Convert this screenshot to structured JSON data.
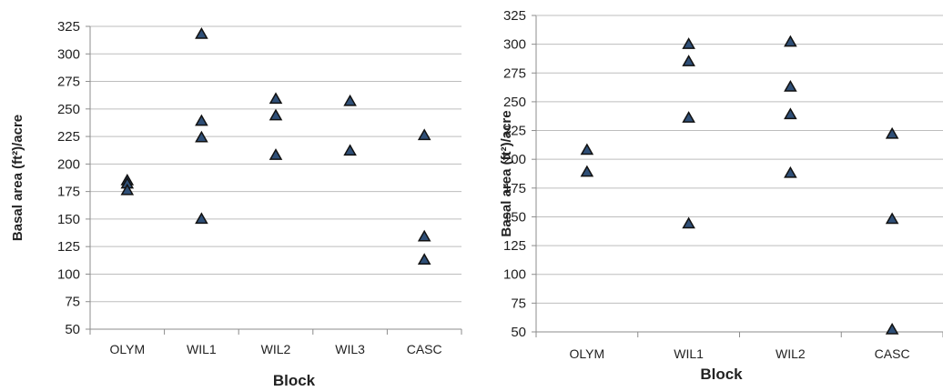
{
  "chart_data": [
    {
      "type": "scatter",
      "title": "",
      "xlabel": "Block",
      "ylabel": "Basal area (ft²)/acre",
      "categories": [
        "OLYM",
        "WIL1",
        "WIL2",
        "WIL3",
        "CASC"
      ],
      "ylim": [
        50,
        325
      ],
      "yticks": [
        "50",
        "75",
        "100",
        "125",
        "150",
        "175",
        "200",
        "225",
        "250",
        "275",
        "300",
        "325"
      ],
      "grid": true,
      "legend": "none",
      "marker": "triangle",
      "marker_color": "#2f4f77",
      "points": [
        {
          "x": "OLYM",
          "y": 185
        },
        {
          "x": "OLYM",
          "y": 182
        },
        {
          "x": "OLYM",
          "y": 176
        },
        {
          "x": "WIL1",
          "y": 318
        },
        {
          "x": "WIL1",
          "y": 239
        },
        {
          "x": "WIL1",
          "y": 224
        },
        {
          "x": "WIL1",
          "y": 150
        },
        {
          "x": "WIL2",
          "y": 259
        },
        {
          "x": "WIL2",
          "y": 244
        },
        {
          "x": "WIL2",
          "y": 208
        },
        {
          "x": "WIL3",
          "y": 257
        },
        {
          "x": "WIL3",
          "y": 212
        },
        {
          "x": "CASC",
          "y": 226
        },
        {
          "x": "CASC",
          "y": 134
        },
        {
          "x": "CASC",
          "y": 113
        }
      ]
    },
    {
      "type": "scatter",
      "title": "",
      "xlabel": "Block",
      "ylabel": "Basal area (ft²)/acre",
      "categories": [
        "OLYM",
        "WIL1",
        "WIL2",
        "CASC"
      ],
      "ylim": [
        50,
        325
      ],
      "yticks": [
        "50",
        "75",
        "100",
        "125",
        "150",
        "175",
        "200",
        "225",
        "250",
        "275",
        "300",
        "325"
      ],
      "grid": true,
      "legend": "none",
      "marker": "triangle",
      "marker_color": "#2f4f77",
      "points": [
        {
          "x": "OLYM",
          "y": 208
        },
        {
          "x": "OLYM",
          "y": 189
        },
        {
          "x": "WIL1",
          "y": 300
        },
        {
          "x": "WIL1",
          "y": 285
        },
        {
          "x": "WIL1",
          "y": 236
        },
        {
          "x": "WIL1",
          "y": 144
        },
        {
          "x": "WIL2",
          "y": 302
        },
        {
          "x": "WIL2",
          "y": 263
        },
        {
          "x": "WIL2",
          "y": 239
        },
        {
          "x": "WIL2",
          "y": 188
        },
        {
          "x": "CASC",
          "y": 222
        },
        {
          "x": "CASC",
          "y": 148
        },
        {
          "x": "CASC",
          "y": 52
        }
      ]
    }
  ]
}
